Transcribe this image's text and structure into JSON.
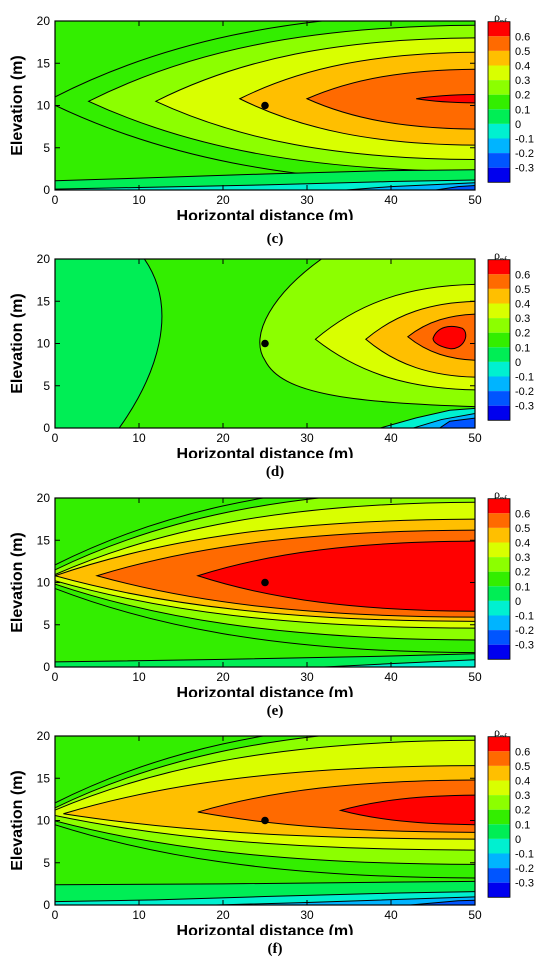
{
  "chart_data": [
    {
      "panel": "c",
      "type": "heatmap",
      "caption": "(c)",
      "xlabel": "Horizontal distance (m)",
      "ylabel": "Elevation (m)",
      "xlim": [
        0,
        50
      ],
      "ylim": [
        0,
        20
      ],
      "xticks": [
        0,
        10,
        20,
        30,
        40,
        50
      ],
      "yticks": [
        0,
        5,
        10,
        15,
        20
      ],
      "marker": {
        "x": 25,
        "y": 10
      },
      "legend_title": "ρpf",
      "legend_levels": [
        0.6,
        0.5,
        0.4,
        0.3,
        0.2,
        0.1,
        0,
        -0.1,
        -0.2,
        -0.3
      ],
      "contour_x_extent_at_y10": {
        "0.1": 4,
        "0.2": 12,
        "0.3": 15.5,
        "0.4": 22,
        "0.5": 30,
        "0.6": 43
      }
    },
    {
      "panel": "d",
      "type": "heatmap",
      "caption": "(d)",
      "xlabel": "Horizontal distance (m)",
      "ylabel": "Elevation (m)",
      "xlim": [
        0,
        50
      ],
      "ylim": [
        0,
        20
      ],
      "xticks": [
        0,
        10,
        20,
        30,
        40,
        50
      ],
      "yticks": [
        0,
        5,
        10,
        15,
        20
      ],
      "marker": {
        "x": 25,
        "y": 10
      },
      "legend_title": "ρpf",
      "legend_levels": [
        0.6,
        0.5,
        0.4,
        0.3,
        0.2,
        0.1,
        0,
        -0.1,
        -0.2,
        -0.3
      ],
      "contour_x_extent_at_y10": {
        "0.1": 25,
        "0.2": 31,
        "0.3": 37,
        "0.4": 42,
        "0.5": 45
      }
    },
    {
      "panel": "e",
      "type": "heatmap",
      "caption": "(e)",
      "xlabel": "Horizontal distance (m)",
      "ylabel": "Elevation (m)",
      "xlim": [
        0,
        50
      ],
      "ylim": [
        0,
        20
      ],
      "xticks": [
        0,
        10,
        20,
        30,
        40,
        50
      ],
      "yticks": [
        0,
        5,
        10,
        15,
        20
      ],
      "marker": {
        "x": 25,
        "y": 10
      },
      "legend_title": "ρpf",
      "legend_levels": [
        0.6,
        0.5,
        0.4,
        0.3,
        0.2,
        0.1,
        0,
        -0.1,
        -0.2,
        -0.3
      ],
      "contour_x_extent_at_y10": {
        "0.4": 0,
        "0.5": 5,
        "0.6": 17
      }
    },
    {
      "panel": "f",
      "type": "heatmap",
      "caption": "(f)",
      "xlabel": "Horizontal distance (m)",
      "ylabel": "Elevation (m)",
      "xlim": [
        0,
        50
      ],
      "ylim": [
        0,
        20
      ],
      "xticks": [
        0,
        10,
        20,
        30,
        40,
        50
      ],
      "yticks": [
        0,
        5,
        10,
        15,
        20
      ],
      "marker": {
        "x": 25,
        "y": 10
      },
      "legend_title": "ρpf",
      "legend_levels": [
        0.6,
        0.5,
        0.4,
        0.3,
        0.2,
        0.1,
        0,
        -0.1,
        -0.2,
        -0.3
      ],
      "contour_x_extent_at_y10": {
        "0.4": 1,
        "0.5": 17,
        "0.6": 34
      }
    }
  ],
  "colors": {
    "0.6": "#ff0000",
    "0.5": "#ff6a00",
    "0.4": "#ffbf00",
    "0.3": "#d9ff00",
    "0.2": "#8cff00",
    "0.1": "#33ee00",
    "0": "#00ee55",
    "-0.1": "#00f0d0",
    "-0.2": "#00b4ff",
    "-0.3": "#0055ff",
    "below": "#0000ee"
  }
}
